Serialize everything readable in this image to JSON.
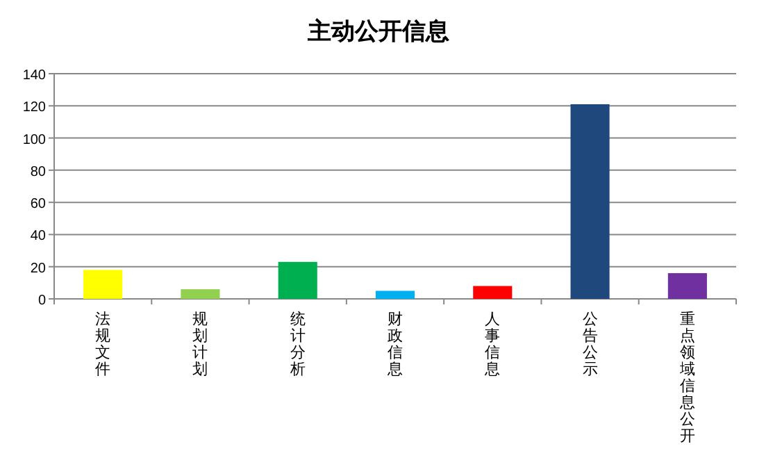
{
  "chart_data": {
    "type": "bar",
    "title": "主动公开信息",
    "categories": [
      "法规文件",
      "规划计划",
      "统计分析",
      "财政信息",
      "人事信息",
      "公告公示",
      "重点领域信息公开"
    ],
    "values": [
      18,
      6,
      23,
      5,
      8,
      121,
      16
    ],
    "colors": [
      "#ffff00",
      "#92d050",
      "#00b050",
      "#00b0f0",
      "#ff0000",
      "#1f497d",
      "#7030a0"
    ],
    "ylim": [
      0,
      140
    ],
    "yticks": [
      0,
      20,
      40,
      60,
      80,
      100,
      120,
      140
    ],
    "grid": "y"
  }
}
